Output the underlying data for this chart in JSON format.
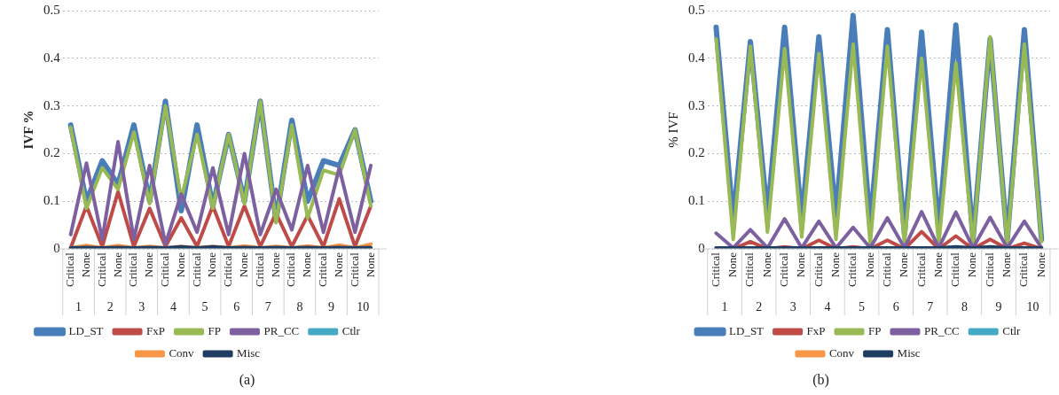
{
  "chart_data": [
    {
      "type": "line",
      "ylabel": "IVF %",
      "categories": [
        "Critical",
        "None",
        "Critical",
        "None",
        "Critical",
        "None",
        "Critical",
        "None",
        "Critical",
        "None",
        "Critical",
        "None",
        "Critical",
        "None",
        "Critical",
        "None",
        "Critical",
        "None",
        "Critical",
        "None"
      ],
      "series": [
        {
          "name": "LD_ST",
          "color": "#4a7ebb",
          "values": [
            0.26,
            0.1,
            0.185,
            0.135,
            0.26,
            0.1,
            0.31,
            0.08,
            0.26,
            0.09,
            0.24,
            0.1,
            0.31,
            0.06,
            0.27,
            0.1,
            0.185,
            0.175,
            0.25,
            0.1
          ]
        },
        {
          "name": "FxP",
          "color": "#be4b48",
          "values": [
            0.002,
            0.09,
            0.005,
            0.12,
            0.005,
            0.085,
            0.005,
            0.065,
            0.005,
            0.09,
            0.005,
            0.09,
            0.005,
            0.075,
            0.005,
            0.07,
            0.005,
            0.105,
            0.005,
            0.09
          ]
        },
        {
          "name": "FP",
          "color": "#98b954",
          "values": [
            0.255,
            0.085,
            0.17,
            0.125,
            0.245,
            0.095,
            0.3,
            0.105,
            0.24,
            0.085,
            0.24,
            0.095,
            0.31,
            0.055,
            0.26,
            0.065,
            0.165,
            0.155,
            0.25,
            0.09
          ]
        },
        {
          "name": "PR_CC",
          "color": "#7d60a0",
          "values": [
            0.03,
            0.18,
            0.02,
            0.225,
            0.02,
            0.175,
            0.01,
            0.115,
            0.035,
            0.17,
            0.03,
            0.2,
            0.03,
            0.125,
            0.04,
            0.175,
            0.035,
            0.17,
            0.035,
            0.175
          ]
        },
        {
          "name": "Ctlr",
          "color": "#46aac5",
          "values": [
            null,
            null,
            null,
            null,
            null,
            null,
            null,
            null,
            null,
            null,
            null,
            null,
            null,
            null,
            null,
            null,
            null,
            null,
            null,
            null
          ]
        },
        {
          "name": "Conv",
          "color": "#f79646",
          "values": [
            0.002,
            0.007,
            0.002,
            0.007,
            0.002,
            0.005,
            0.002,
            0.005,
            0.002,
            0.005,
            0.002,
            0.006,
            0.002,
            0.005,
            0.002,
            0.006,
            0.002,
            0.008,
            0.002,
            0.01
          ]
        },
        {
          "name": "Misc",
          "color": "#1f3d63",
          "values": [
            0.002,
            0.003,
            0.002,
            0.003,
            0.002,
            0.003,
            0.002,
            0.004,
            0.002,
            0.004,
            0.002,
            0.003,
            0.002,
            0.003,
            0.002,
            0.003,
            0.002,
            0.003,
            0.002,
            0.003
          ]
        }
      ],
      "ylim": [
        0,
        0.5
      ],
      "yticks": [
        0,
        0.1,
        0.2,
        0.3,
        0.4,
        0.5
      ],
      "grid": "y",
      "legend": "bottom",
      "marker": "none",
      "annotations": [
        "1",
        "2",
        "3",
        "4",
        "5",
        "6",
        "7",
        "8",
        "9",
        "10",
        "(a)"
      ]
    },
    {
      "type": "line",
      "ylabel": "% IVF",
      "categories": [
        "Critical",
        "None",
        "Critical",
        "None",
        "Critical",
        "None",
        "Critical",
        "None",
        "Critical",
        "None",
        "Critical",
        "None",
        "Critical",
        "None",
        "Critical",
        "None",
        "Critical",
        "None",
        "Critical",
        "None"
      ],
      "series": [
        {
          "name": "LD_ST",
          "color": "#4a7ebb",
          "values": [
            0.465,
            0.06,
            0.435,
            0.07,
            0.465,
            0.06,
            0.445,
            0.07,
            0.49,
            0.05,
            0.46,
            0.03,
            0.455,
            0.04,
            0.47,
            0.02,
            0.44,
            0.02,
            0.46,
            0.02
          ]
        },
        {
          "name": "FxP",
          "color": "#be4b48",
          "values": [
            0.002,
            0,
            0.015,
            0,
            0.004,
            0,
            0.018,
            0,
            0.004,
            0,
            0.018,
            0,
            0.036,
            0,
            0.027,
            0,
            0.02,
            0,
            0.012,
            0
          ]
        },
        {
          "name": "FP",
          "color": "#98b954",
          "values": [
            0.44,
            0.02,
            0.425,
            0.035,
            0.42,
            0.025,
            0.41,
            0.02,
            0.43,
            0.01,
            0.425,
            0.01,
            0.4,
            0.01,
            0.39,
            0.01,
            0.445,
            0.01,
            0.43,
            0.015
          ]
        },
        {
          "name": "PR_CC",
          "color": "#7d60a0",
          "values": [
            0.033,
            0.002,
            0.04,
            0.002,
            0.063,
            0.002,
            0.058,
            0.002,
            0.045,
            0.002,
            0.065,
            0.002,
            0.078,
            0.002,
            0.077,
            0.002,
            0.066,
            0.002,
            0.058,
            0.002
          ]
        },
        {
          "name": "Ctlr",
          "color": "#46aac5",
          "values": [
            null,
            null,
            null,
            null,
            null,
            null,
            null,
            null,
            null,
            null,
            null,
            null,
            null,
            null,
            null,
            null,
            null,
            null,
            null,
            null
          ]
        },
        {
          "name": "Conv",
          "color": "#f79646",
          "values": [
            null,
            null,
            null,
            null,
            null,
            null,
            null,
            null,
            null,
            null,
            null,
            null,
            null,
            null,
            null,
            null,
            null,
            null,
            null,
            null
          ]
        },
        {
          "name": "Misc",
          "color": "#1f3d63",
          "values": [
            0.002,
            0.002,
            0.002,
            0.002,
            0.002,
            0.002,
            0.002,
            0.002,
            0.002,
            0.002,
            0.002,
            0.002,
            0.002,
            0.002,
            0.004,
            0.002,
            0.004,
            0.002,
            0.002,
            0.002
          ]
        }
      ],
      "ylim": [
        0,
        0.5
      ],
      "yticks": [
        0,
        0.1,
        0.2,
        0.3,
        0.4,
        0.5
      ],
      "grid": "y",
      "legend": "bottom",
      "marker": "none",
      "annotations": [
        "1",
        "2",
        "3",
        "4",
        "5",
        "6",
        "7",
        "8",
        "9",
        "10",
        "(b)"
      ]
    }
  ]
}
